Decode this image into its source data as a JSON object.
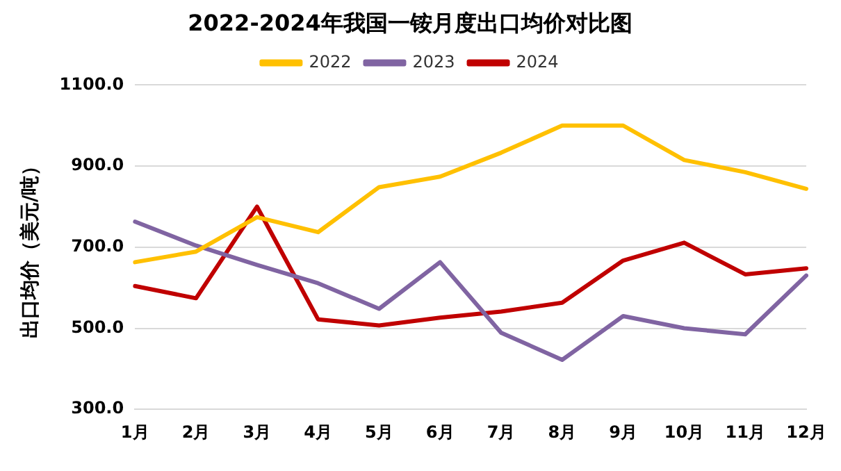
{
  "chart_data": {
    "type": "line",
    "title": "2022-2024年我国一铵月度出口均价对比图",
    "ylabel": "出口均价（美元/吨）",
    "categories": [
      "1月",
      "2月",
      "3月",
      "4月",
      "5月",
      "6月",
      "7月",
      "8月",
      "9月",
      "10月",
      "11月",
      "12月"
    ],
    "series": [
      {
        "name": "2022",
        "color": "#ffc000",
        "values": [
          663,
          689,
          774,
          737,
          848,
          874,
          933,
          1000,
          1000,
          915,
          885,
          844
        ]
      },
      {
        "name": "2023",
        "color": "#8064a2",
        "values": [
          763,
          704,
          656,
          611,
          548,
          663,
          489,
          422,
          530,
          500,
          485,
          630
        ]
      },
      {
        "name": "2024",
        "color": "#c00000",
        "values": [
          604,
          574,
          800,
          522,
          507,
          526,
          541,
          563,
          667,
          711,
          633,
          648
        ]
      }
    ],
    "ylim": [
      300,
      1100
    ],
    "yticks": [
      {
        "value": 300,
        "label": "300.0"
      },
      {
        "value": 500,
        "label": "500.0"
      },
      {
        "value": 700,
        "label": "700.0"
      },
      {
        "value": 900,
        "label": "900.0"
      },
      {
        "value": 1100,
        "label": "1100.0"
      }
    ],
    "grid": "y",
    "legend": "top",
    "marker": "none",
    "line_style": "solid"
  }
}
